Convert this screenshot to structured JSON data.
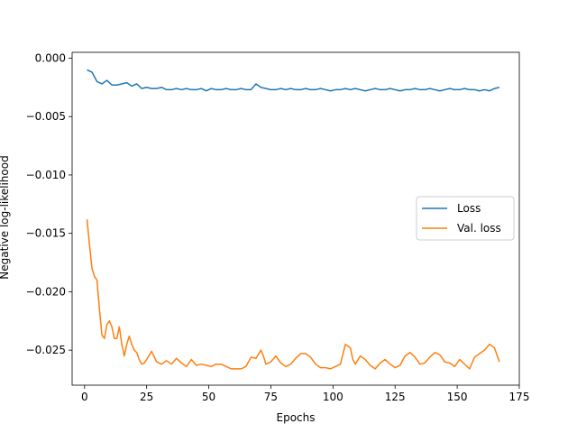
{
  "chart_data": {
    "type": "line",
    "title": "",
    "xlabel": "Epochs",
    "ylabel": "Negative log-likelihood",
    "xlim": [
      -5,
      175
    ],
    "ylim": [
      -0.028,
      0.0005
    ],
    "xticks": [
      0,
      25,
      50,
      75,
      100,
      125,
      150,
      175
    ],
    "yticks": [
      0.0,
      -0.005,
      -0.01,
      -0.015,
      -0.02,
      -0.025
    ],
    "xtick_labels": [
      "0",
      "25",
      "50",
      "75",
      "100",
      "125",
      "150",
      "175"
    ],
    "ytick_labels": [
      "0.000",
      "−0.005",
      "−0.010",
      "−0.015",
      "−0.020",
      "−0.025"
    ],
    "grid": false,
    "legend_position": "center-right",
    "series": [
      {
        "name": "Loss",
        "color": "#1f77b4",
        "x": [
          1,
          3,
          5,
          7,
          9,
          11,
          13,
          15,
          17,
          19,
          21,
          23,
          25,
          27,
          29,
          31,
          33,
          35,
          37,
          39,
          41,
          43,
          45,
          47,
          49,
          51,
          53,
          55,
          57,
          59,
          61,
          63,
          65,
          67,
          69,
          71,
          73,
          75,
          77,
          79,
          81,
          83,
          85,
          87,
          89,
          91,
          93,
          95,
          97,
          99,
          101,
          103,
          105,
          107,
          109,
          111,
          113,
          115,
          117,
          119,
          121,
          123,
          125,
          127,
          129,
          131,
          133,
          135,
          137,
          139,
          141,
          143,
          145,
          147,
          149,
          151,
          153,
          155,
          157,
          159,
          161,
          163,
          165,
          167
        ],
        "y": [
          -0.001,
          -0.0012,
          -0.002,
          -0.0022,
          -0.0019,
          -0.0023,
          -0.0023,
          -0.0022,
          -0.0021,
          -0.0024,
          -0.0022,
          -0.0026,
          -0.0025,
          -0.0026,
          -0.0026,
          -0.0025,
          -0.0027,
          -0.0027,
          -0.0026,
          -0.0027,
          -0.0026,
          -0.0027,
          -0.0027,
          -0.0026,
          -0.0028,
          -0.0026,
          -0.0027,
          -0.0027,
          -0.0026,
          -0.0027,
          -0.0027,
          -0.0026,
          -0.0027,
          -0.0027,
          -0.0022,
          -0.0025,
          -0.0026,
          -0.0027,
          -0.0027,
          -0.0026,
          -0.0027,
          -0.0026,
          -0.0027,
          -0.0027,
          -0.0026,
          -0.0027,
          -0.0027,
          -0.0026,
          -0.0027,
          -0.0028,
          -0.0027,
          -0.0027,
          -0.0026,
          -0.0027,
          -0.0026,
          -0.0027,
          -0.0028,
          -0.0027,
          -0.0026,
          -0.0027,
          -0.0027,
          -0.0026,
          -0.0027,
          -0.0028,
          -0.0027,
          -0.0027,
          -0.0026,
          -0.0027,
          -0.0027,
          -0.0026,
          -0.0027,
          -0.0028,
          -0.0027,
          -0.0026,
          -0.0027,
          -0.0027,
          -0.0026,
          -0.0027,
          -0.0027,
          -0.0028,
          -0.0027,
          -0.0028,
          -0.0026,
          -0.0025
        ]
      },
      {
        "name": "Val. loss",
        "color": "#ff7f0e",
        "x": [
          1,
          2,
          3,
          4,
          5,
          6,
          7,
          8,
          9,
          10,
          11,
          12,
          13,
          14,
          15,
          16,
          17,
          18,
          19,
          20,
          21,
          22,
          23,
          24,
          25,
          27,
          29,
          31,
          33,
          35,
          37,
          39,
          41,
          43,
          45,
          47,
          49,
          51,
          53,
          55,
          57,
          59,
          61,
          63,
          65,
          67,
          69,
          71,
          72,
          73,
          75,
          77,
          79,
          81,
          83,
          85,
          87,
          89,
          91,
          93,
          95,
          97,
          99,
          101,
          103,
          105,
          107,
          108,
          109,
          111,
          113,
          115,
          117,
          119,
          121,
          123,
          125,
          127,
          129,
          131,
          133,
          135,
          137,
          139,
          141,
          143,
          145,
          147,
          149,
          151,
          153,
          155,
          157,
          159,
          161,
          163,
          165,
          167
        ],
        "y": [
          -0.0138,
          -0.016,
          -0.018,
          -0.0187,
          -0.019,
          -0.0215,
          -0.0237,
          -0.024,
          -0.0228,
          -0.0225,
          -0.023,
          -0.024,
          -0.024,
          -0.023,
          -0.0245,
          -0.0255,
          -0.0245,
          -0.0238,
          -0.0245,
          -0.025,
          -0.0252,
          -0.0258,
          -0.0262,
          -0.0261,
          -0.0258,
          -0.0251,
          -0.026,
          -0.0262,
          -0.0259,
          -0.0262,
          -0.0257,
          -0.0261,
          -0.0264,
          -0.0258,
          -0.0263,
          -0.0262,
          -0.0263,
          -0.0264,
          -0.0262,
          -0.0262,
          -0.0264,
          -0.0266,
          -0.0266,
          -0.0266,
          -0.0264,
          -0.0256,
          -0.0257,
          -0.025,
          -0.0255,
          -0.0262,
          -0.026,
          -0.0255,
          -0.0261,
          -0.0264,
          -0.0262,
          -0.0257,
          -0.0253,
          -0.0253,
          -0.0256,
          -0.0262,
          -0.0265,
          -0.0265,
          -0.0266,
          -0.0264,
          -0.0262,
          -0.0245,
          -0.0248,
          -0.0258,
          -0.0262,
          -0.0255,
          -0.0258,
          -0.0263,
          -0.0266,
          -0.0261,
          -0.0258,
          -0.0262,
          -0.0265,
          -0.0263,
          -0.0255,
          -0.0252,
          -0.0256,
          -0.0262,
          -0.0261,
          -0.0256,
          -0.0252,
          -0.0254,
          -0.026,
          -0.0261,
          -0.0264,
          -0.0258,
          -0.0262,
          -0.0266,
          -0.0256,
          -0.0253,
          -0.025,
          -0.0245,
          -0.0248,
          -0.026
        ]
      }
    ]
  }
}
